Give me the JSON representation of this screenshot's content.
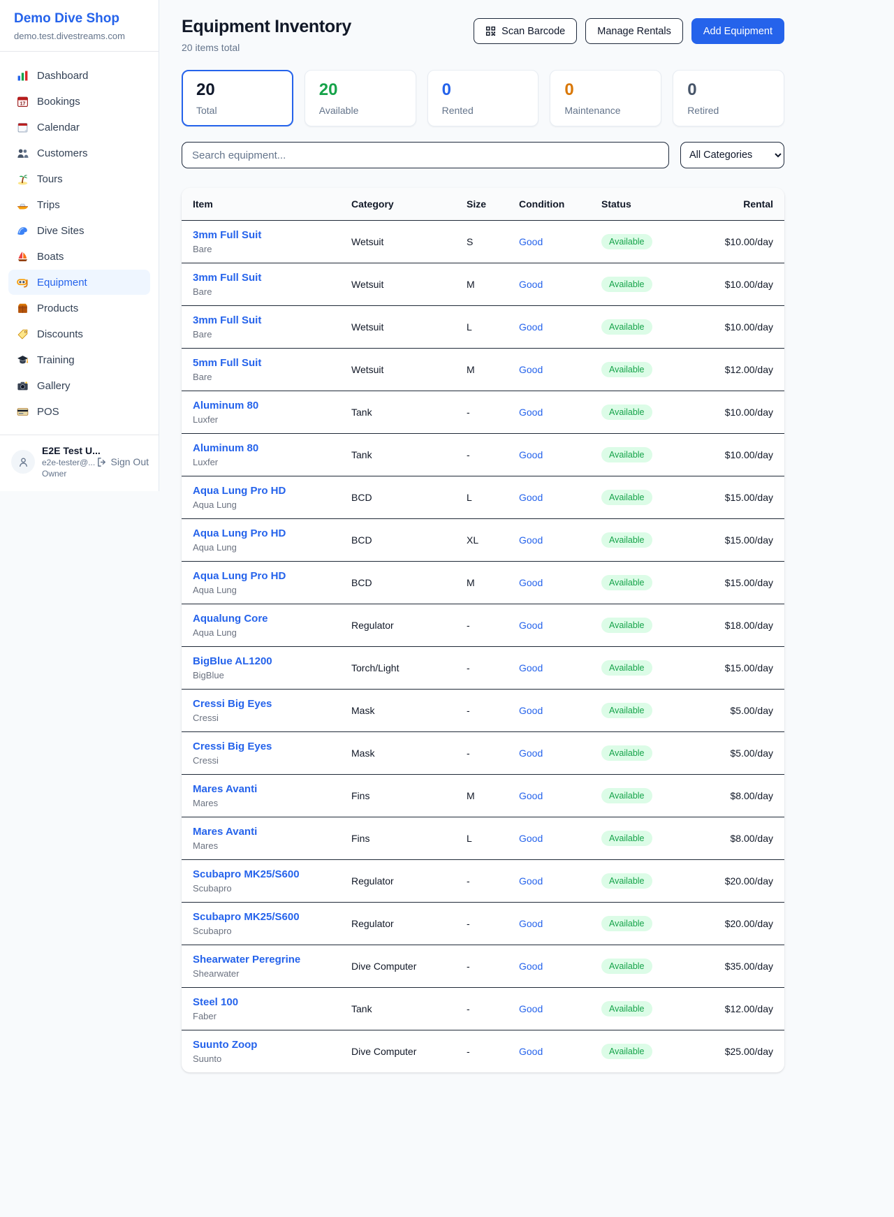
{
  "sidebar": {
    "shop_name": "Demo Dive Shop",
    "shop_domain": "demo.test.divestreams.com",
    "items": [
      {
        "label": "Dashboard",
        "icon": "bar-chart",
        "active": false
      },
      {
        "label": "Bookings",
        "icon": "calendar-date",
        "active": false
      },
      {
        "label": "Calendar",
        "icon": "tear-calendar",
        "active": false
      },
      {
        "label": "Customers",
        "icon": "people",
        "active": false
      },
      {
        "label": "Tours",
        "icon": "palm-tree",
        "active": false
      },
      {
        "label": "Trips",
        "icon": "speedboat",
        "active": false
      },
      {
        "label": "Dive Sites",
        "icon": "wave",
        "active": false
      },
      {
        "label": "Boats",
        "icon": "sailboat",
        "active": false
      },
      {
        "label": "Equipment",
        "icon": "dive-mask",
        "active": true
      },
      {
        "label": "Products",
        "icon": "package",
        "active": false
      },
      {
        "label": "Discounts",
        "icon": "tag",
        "active": false
      },
      {
        "label": "Training",
        "icon": "graduation-cap",
        "active": false
      },
      {
        "label": "Gallery",
        "icon": "camera",
        "active": false
      },
      {
        "label": "POS",
        "icon": "credit-card",
        "active": false
      }
    ],
    "user": {
      "name": "E2E Test U...",
      "email": "e2e-tester@...",
      "role": "Owner",
      "sign_out_label": "Sign Out"
    }
  },
  "header": {
    "title": "Equipment Inventory",
    "subtitle": "20 items total",
    "scan_barcode_label": "Scan Barcode",
    "manage_rentals_label": "Manage Rentals",
    "add_equipment_label": "Add Equipment"
  },
  "stats": [
    {
      "value": "20",
      "label": "Total",
      "color": "#0f172a",
      "selected": true
    },
    {
      "value": "20",
      "label": "Available",
      "color": "#16a34a",
      "selected": false
    },
    {
      "value": "0",
      "label": "Rented",
      "color": "#2563eb",
      "selected": false
    },
    {
      "value": "0",
      "label": "Maintenance",
      "color": "#d97706",
      "selected": false
    },
    {
      "value": "0",
      "label": "Retired",
      "color": "#475569",
      "selected": false
    }
  ],
  "filters": {
    "search_placeholder": "Search equipment...",
    "category_selected": "All Categories"
  },
  "table": {
    "columns": {
      "item": "Item",
      "category": "Category",
      "size": "Size",
      "condition": "Condition",
      "status": "Status",
      "rental": "Rental"
    },
    "rows": [
      {
        "item": "3mm Full Suit",
        "brand": "Bare",
        "category": "Wetsuit",
        "size": "S",
        "condition": "Good",
        "status": "Available",
        "rental": "$10.00/day"
      },
      {
        "item": "3mm Full Suit",
        "brand": "Bare",
        "category": "Wetsuit",
        "size": "M",
        "condition": "Good",
        "status": "Available",
        "rental": "$10.00/day"
      },
      {
        "item": "3mm Full Suit",
        "brand": "Bare",
        "category": "Wetsuit",
        "size": "L",
        "condition": "Good",
        "status": "Available",
        "rental": "$10.00/day"
      },
      {
        "item": "5mm Full Suit",
        "brand": "Bare",
        "category": "Wetsuit",
        "size": "M",
        "condition": "Good",
        "status": "Available",
        "rental": "$12.00/day"
      },
      {
        "item": "Aluminum 80",
        "brand": "Luxfer",
        "category": "Tank",
        "size": "-",
        "condition": "Good",
        "status": "Available",
        "rental": "$10.00/day"
      },
      {
        "item": "Aluminum 80",
        "brand": "Luxfer",
        "category": "Tank",
        "size": "-",
        "condition": "Good",
        "status": "Available",
        "rental": "$10.00/day"
      },
      {
        "item": "Aqua Lung Pro HD",
        "brand": "Aqua Lung",
        "category": "BCD",
        "size": "L",
        "condition": "Good",
        "status": "Available",
        "rental": "$15.00/day"
      },
      {
        "item": "Aqua Lung Pro HD",
        "brand": "Aqua Lung",
        "category": "BCD",
        "size": "XL",
        "condition": "Good",
        "status": "Available",
        "rental": "$15.00/day"
      },
      {
        "item": "Aqua Lung Pro HD",
        "brand": "Aqua Lung",
        "category": "BCD",
        "size": "M",
        "condition": "Good",
        "status": "Available",
        "rental": "$15.00/day"
      },
      {
        "item": "Aqualung Core",
        "brand": "Aqua Lung",
        "category": "Regulator",
        "size": "-",
        "condition": "Good",
        "status": "Available",
        "rental": "$18.00/day"
      },
      {
        "item": "BigBlue AL1200",
        "brand": "BigBlue",
        "category": "Torch/Light",
        "size": "-",
        "condition": "Good",
        "status": "Available",
        "rental": "$15.00/day"
      },
      {
        "item": "Cressi Big Eyes",
        "brand": "Cressi",
        "category": "Mask",
        "size": "-",
        "condition": "Good",
        "status": "Available",
        "rental": "$5.00/day"
      },
      {
        "item": "Cressi Big Eyes",
        "brand": "Cressi",
        "category": "Mask",
        "size": "-",
        "condition": "Good",
        "status": "Available",
        "rental": "$5.00/day"
      },
      {
        "item": "Mares Avanti",
        "brand": "Mares",
        "category": "Fins",
        "size": "M",
        "condition": "Good",
        "status": "Available",
        "rental": "$8.00/day"
      },
      {
        "item": "Mares Avanti",
        "brand": "Mares",
        "category": "Fins",
        "size": "L",
        "condition": "Good",
        "status": "Available",
        "rental": "$8.00/day"
      },
      {
        "item": "Scubapro MK25/S600",
        "brand": "Scubapro",
        "category": "Regulator",
        "size": "-",
        "condition": "Good",
        "status": "Available",
        "rental": "$20.00/day"
      },
      {
        "item": "Scubapro MK25/S600",
        "brand": "Scubapro",
        "category": "Regulator",
        "size": "-",
        "condition": "Good",
        "status": "Available",
        "rental": "$20.00/day"
      },
      {
        "item": "Shearwater Peregrine",
        "brand": "Shearwater",
        "category": "Dive Computer",
        "size": "-",
        "condition": "Good",
        "status": "Available",
        "rental": "$35.00/day"
      },
      {
        "item": "Steel 100",
        "brand": "Faber",
        "category": "Tank",
        "size": "-",
        "condition": "Good",
        "status": "Available",
        "rental": "$12.00/day"
      },
      {
        "item": "Suunto Zoop",
        "brand": "Suunto",
        "category": "Dive Computer",
        "size": "-",
        "condition": "Good",
        "status": "Available",
        "rental": "$25.00/day"
      }
    ]
  },
  "colors": {
    "accent_blue": "#2563eb",
    "available_green": "#16a34a",
    "badge_bg": "#dcfce7",
    "maintenance_orange": "#d97706",
    "retired_gray": "#475569"
  }
}
